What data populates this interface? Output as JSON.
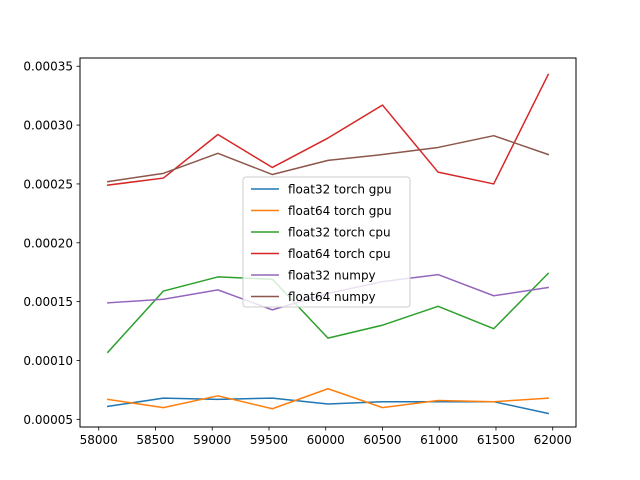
{
  "chart_data": {
    "type": "line",
    "title": "",
    "xlabel": "",
    "ylabel": "",
    "x": [
      58080,
      58570,
      59050,
      59530,
      60020,
      60500,
      60990,
      61480,
      61960
    ],
    "xlim": [
      57835,
      62205
    ],
    "ylim": [
      4.35e-05,
      0.000357
    ],
    "xticks": [
      58000,
      58500,
      59000,
      59500,
      60000,
      60500,
      61000,
      61500,
      62000
    ],
    "xtick_labels": [
      "58000",
      "58500",
      "59000",
      "59500",
      "60000",
      "60500",
      "61000",
      "61500",
      "62000"
    ],
    "yticks": [
      5e-05,
      0.0001,
      0.00015,
      0.0002,
      0.00025,
      0.0003,
      0.00035
    ],
    "ytick_labels": [
      "0.00005",
      "0.00010",
      "0.00015",
      "0.00020",
      "0.00025",
      "0.00030",
      "0.00035"
    ],
    "grid": false,
    "legend_position": "center",
    "series": [
      {
        "name": "float32 torch gpu",
        "color": "#1f77b4",
        "values": [
          6.1e-05,
          6.8e-05,
          6.7e-05,
          6.8e-05,
          6.3e-05,
          6.5e-05,
          6.5e-05,
          6.5e-05,
          5.5e-05
        ]
      },
      {
        "name": "float64 torch gpu",
        "color": "#ff7f0e",
        "values": [
          6.7e-05,
          6e-05,
          7e-05,
          5.9e-05,
          7.6e-05,
          6e-05,
          6.6e-05,
          6.5e-05,
          6.8e-05
        ]
      },
      {
        "name": "float32 torch cpu",
        "color": "#2ca02c",
        "values": [
          0.000107,
          0.000159,
          0.000171,
          0.000169,
          0.000119,
          0.00013,
          0.000146,
          0.000127,
          0.000174
        ]
      },
      {
        "name": "float64 torch cpu",
        "color": "#d62728",
        "values": [
          0.000249,
          0.000255,
          0.000292,
          0.000264,
          0.000289,
          0.000317,
          0.00026,
          0.00025,
          0.000343
        ]
      },
      {
        "name": "float32 numpy",
        "color": "#9467bd",
        "values": [
          0.000149,
          0.000152,
          0.00016,
          0.000143,
          0.000157,
          0.000167,
          0.000173,
          0.000155,
          0.000162
        ]
      },
      {
        "name": "float64 numpy",
        "color": "#8c564b",
        "values": [
          0.000252,
          0.000259,
          0.000276,
          0.000258,
          0.00027,
          0.000275,
          0.000281,
          0.000291,
          0.000275
        ]
      }
    ]
  }
}
